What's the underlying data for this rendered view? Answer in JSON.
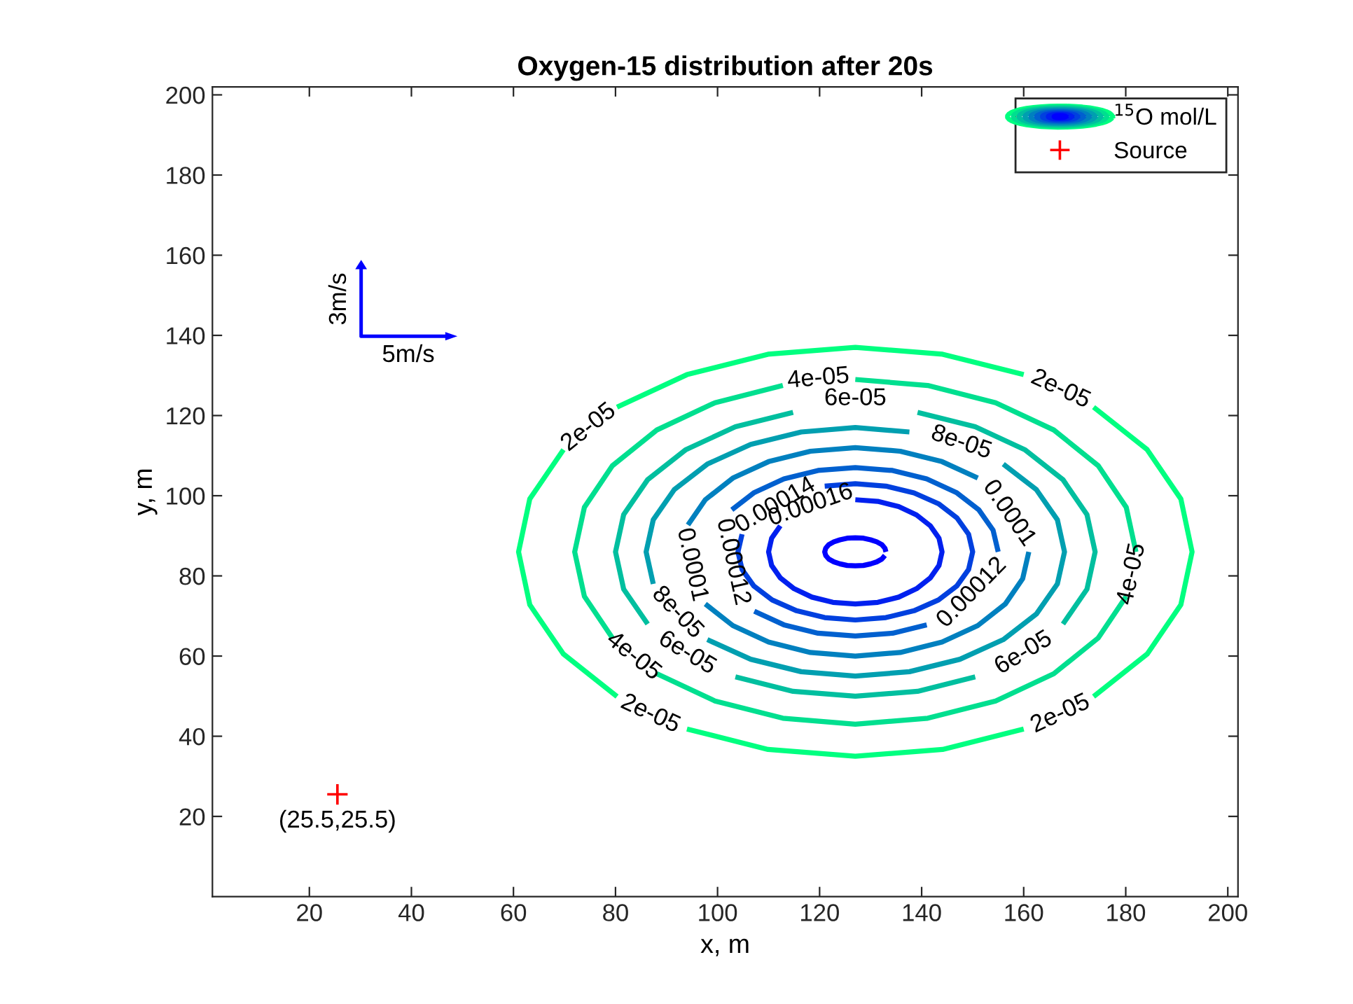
{
  "chart_data": {
    "type": "line",
    "title": "Oxygen-15 distribution after 20s",
    "xlabel": "x, m",
    "ylabel": "y, m",
    "xlim": [
      1,
      202
    ],
    "ylim": [
      0,
      202
    ],
    "xticks": [
      20,
      40,
      60,
      80,
      100,
      120,
      140,
      160,
      180,
      200
    ],
    "yticks": [
      20,
      40,
      60,
      80,
      100,
      120,
      140,
      160,
      180,
      200
    ],
    "grid": false,
    "legend": "top right",
    "line_style": "solid",
    "marker": "none",
    "series": [
      {
        "name": "$^{15}$O mol/L",
        "color": "#00ff80",
        "x": [
          160,
          144.1,
          127,
          109.9,
          94,
          80.3
        ],
        "values": [
          130.2,
          135.3,
          137,
          135.3,
          130.2,
          122.1
        ]
      },
      {
        "color": "#00ff80",
        "x": [
          69.8,
          63.2,
          61,
          63.2,
          69.8,
          80.3
        ],
        "values": [
          111.5,
          99.2,
          86,
          72.8,
          60.5,
          49.9
        ]
      },
      {
        "color": "#00ff80",
        "x": [
          94,
          109.9,
          127,
          144.1,
          160
        ],
        "values": [
          41.8,
          36.7,
          35,
          36.7,
          41.8
        ]
      },
      {
        "color": "#00ff80",
        "x": [
          173.7,
          184.2,
          190.8,
          193,
          190.8,
          184.2,
          173.7
        ],
        "values": [
          49.9,
          60.5,
          72.8,
          86,
          99.2,
          111.5,
          122.1
        ]
      },
      {
        "color": "#00df8f",
        "x": [
          182,
          180.1,
          174.6,
          165.9,
          154.5,
          141.2,
          127
        ],
        "values": [
          86,
          97.1,
          107.5,
          116.4,
          123.2,
          127.5,
          129
        ]
      },
      {
        "color": "#00df8f",
        "x": [
          112.8,
          99.5,
          88.1,
          79.4,
          73.9,
          72,
          73.9,
          79.4
        ],
        "values": [
          127.5,
          123.2,
          116.4,
          107.5,
          97.1,
          86,
          74.9,
          64.5
        ]
      },
      {
        "color": "#00df8f",
        "x": [
          88.1,
          99.5,
          112.8,
          127,
          141.2,
          154.5,
          165.9,
          174.6,
          180.1
        ],
        "values": [
          55.6,
          48.8,
          44.5,
          43,
          44.5,
          48.8,
          55.6,
          64.5,
          74.9
        ]
      },
      {
        "color": "#00bf9f",
        "x": [
          167.7,
          172.4,
          174,
          172.4,
          167.7,
          160.2,
          150.5,
          139.2
        ],
        "values": [
          68,
          76.7,
          86,
          95.3,
          104,
          111.5,
          117.2,
          120.8
        ]
      },
      {
        "color": "#00bf9f",
        "x": [
          114.8,
          103.5,
          93.8,
          86.3,
          81.6,
          80,
          81.6,
          86.3
        ],
        "values": [
          120.8,
          117.2,
          111.5,
          104,
          95.3,
          86,
          76.7,
          68
        ]
      },
      {
        "color": "#00bf9f",
        "x": [
          103.5,
          114.8,
          127,
          139.2,
          150.5
        ],
        "values": [
          54.8,
          51.2,
          50,
          51.2,
          54.8
        ]
      },
      {
        "color": "#009fb0",
        "x": [
          137.6,
          127,
          116.4,
          106.5,
          98,
          91.5,
          87.4,
          86,
          87.4
        ],
        "values": [
          115.9,
          117,
          115.9,
          112.8,
          107.9,
          101.5,
          94,
          86,
          78
        ]
      },
      {
        "color": "#009fb0",
        "x": [
          98,
          106.5,
          116.4,
          127,
          137.6,
          147.5,
          156,
          162.5,
          166.6,
          168,
          166.6,
          162.5,
          156
        ],
        "values": [
          64.1,
          59.2,
          56.1,
          55,
          56.1,
          59.2,
          64.1,
          70.5,
          78,
          86,
          94,
          101.5,
          107.9
        ]
      },
      {
        "color": "#0080bf",
        "x": [
          151,
          144,
          135.8,
          127,
          118.2,
          110,
          103,
          97.6,
          94.2
        ],
        "values": [
          104.4,
          108.5,
          111.1,
          112,
          111.1,
          108.5,
          104.4,
          99,
          92.7
        ]
      },
      {
        "color": "#0080bf",
        "x": [
          97.6,
          103,
          110,
          118.2,
          127,
          135.8,
          144,
          151,
          156.4,
          159.8,
          161
        ],
        "values": [
          73,
          67.6,
          63.5,
          60.9,
          60,
          60.9,
          63.5,
          67.6,
          73,
          79.3,
          86
        ]
      },
      {
        "color": "#0060cf",
        "x": [
          155,
          154,
          151.2,
          146.8,
          141,
          134.3,
          127,
          119.7,
          113,
          107.2,
          102.8
        ],
        "values": [
          86,
          91.4,
          96.5,
          100.8,
          104.2,
          106.3,
          107,
          106.3,
          104.2,
          100.8,
          96.5
        ]
      },
      {
        "color": "#0060cf",
        "x": [
          107.2,
          113,
          119.7,
          127,
          134.3,
          141
        ],
        "values": [
          71.2,
          67.8,
          65.7,
          65,
          65.7,
          67.8
        ]
      },
      {
        "color": "#0040df",
        "x": [
          104.8,
          104,
          104.8,
          107.1,
          110.7,
          115.5,
          121,
          127,
          133,
          138.5,
          143.3,
          146.9,
          149.2,
          150,
          149.2,
          146.9,
          143.3,
          138.5,
          133,
          127,
          121
        ],
        "values": [
          90.4,
          86,
          81.6,
          77.5,
          74,
          71.3,
          69.6,
          69,
          69.6,
          71.3,
          74,
          77.5,
          81.6,
          86,
          90.4,
          94.5,
          98,
          100.7,
          102.4,
          103,
          102.4
        ]
      },
      {
        "color": "#0020ef",
        "x": [
          112.3,
          110.6,
          110,
          110.6,
          112.3,
          115,
          118.5,
          122.6,
          127,
          131.4,
          135.5,
          139,
          141.7,
          143.4,
          144,
          143.4,
          141.7,
          139,
          135.5,
          131.4,
          127
        ],
        "values": [
          92.5,
          89.4,
          86,
          82.6,
          79.5,
          76.8,
          74.7,
          73.4,
          73,
          73.4,
          74.7,
          76.8,
          79.5,
          82.6,
          86,
          89.4,
          92.5,
          95.2,
          97.3,
          98.6,
          99
        ]
      },
      {
        "color": "#0000ff",
        "x": [
          133,
          132.8,
          132.2,
          131.2,
          130,
          128.6,
          127,
          125.4,
          124,
          122.8,
          121.8,
          121.2,
          121,
          121.2,
          121.8,
          122.8,
          124,
          125.4,
          127,
          128.6,
          130,
          131.2,
          132.2,
          132.8
        ],
        "values": [
          86,
          86.9,
          87.8,
          88.5,
          89,
          89.4,
          89.5,
          89.4,
          89,
          88.5,
          87.8,
          86.9,
          86,
          85.1,
          84.2,
          83.5,
          83,
          82.6,
          82.5,
          82.6,
          83,
          83.5,
          84.2,
          85.1
        ]
      },
      {
        "type": "scatter",
        "name": "Source",
        "color": "#ff0000",
        "marker": "cross",
        "x": [
          25.5
        ],
        "values": [
          25.5
        ]
      }
    ],
    "annotations": [
      "2e-05",
      "2e-05",
      "2e-05",
      "2e-05",
      "4e-05",
      "4e-05",
      "4e-05",
      "6e-05",
      "6e-05",
      "6e-05",
      "8e-05",
      "8e-05",
      "0.0001",
      "0.0001",
      "0.00012",
      "0.00012",
      "0.00014",
      "0.00016",
      {
        "text": "(25.5,25.5)",
        "x": 25.5,
        "y": 25.5
      },
      "3m/s",
      "5m/s"
    ]
  }
}
